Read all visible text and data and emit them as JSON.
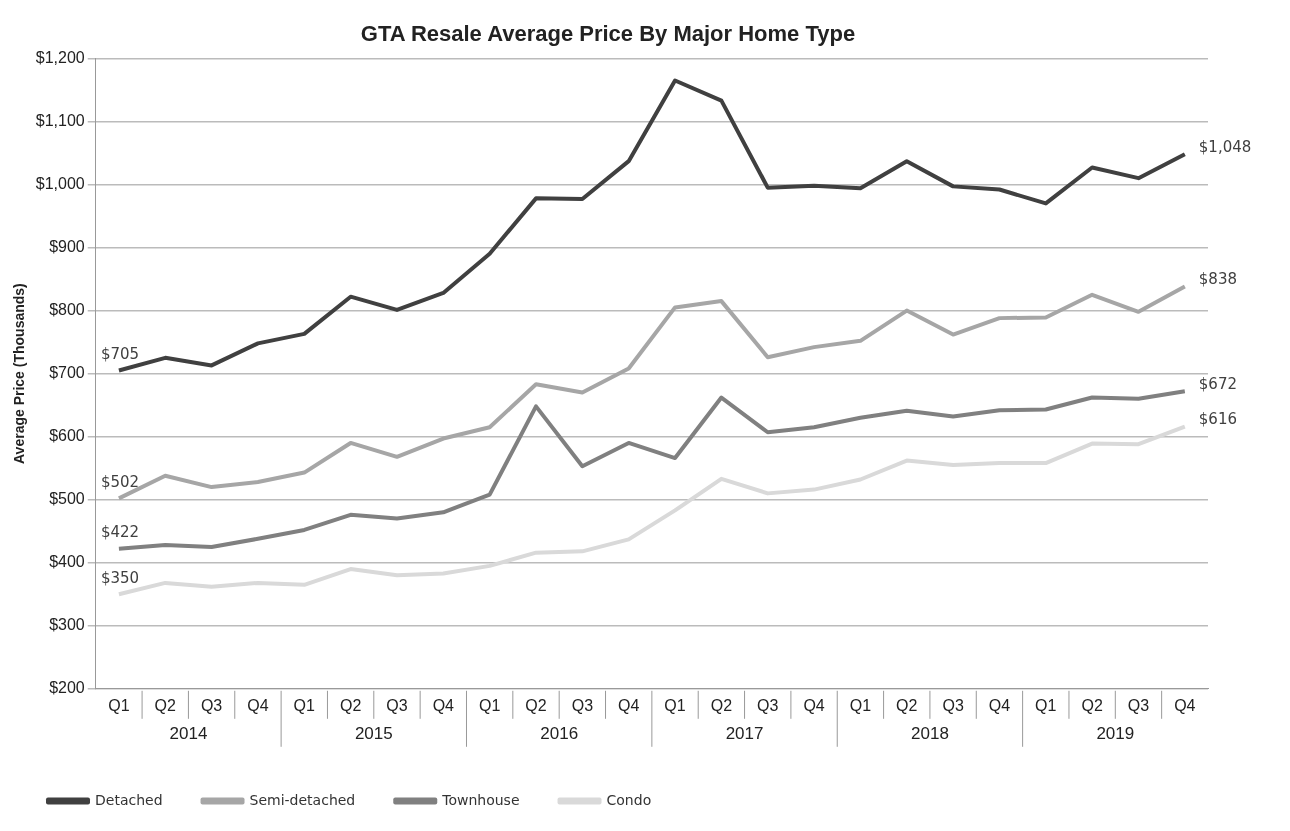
{
  "chart_data": {
    "type": "line",
    "title": "GTA Resale Average Price By Major Home Type",
    "ylabel": "Average Price (Thousands)",
    "categories": [
      "Q1",
      "Q2",
      "Q3",
      "Q4",
      "Q1",
      "Q2",
      "Q3",
      "Q4",
      "Q1",
      "Q2",
      "Q3",
      "Q4",
      "Q1",
      "Q2",
      "Q3",
      "Q4",
      "Q1",
      "Q2",
      "Q3",
      "Q4",
      "Q1",
      "Q2",
      "Q3",
      "Q4"
    ],
    "annotations": [
      "2014",
      "2015",
      "2016",
      "2017",
      "2018",
      "2019"
    ],
    "series": [
      {
        "name": "Detached",
        "color": "#404040",
        "values": [
          705,
          725,
          713,
          748,
          763,
          822,
          801,
          828,
          890,
          978,
          977,
          1037,
          1165,
          1133,
          995,
          998,
          994,
          1037,
          997,
          992,
          970,
          1027,
          1010,
          1048
        ],
        "value_labels": [
          "$705",
          null,
          null,
          null,
          null,
          null,
          null,
          null,
          null,
          null,
          null,
          null,
          null,
          null,
          null,
          null,
          null,
          null,
          null,
          null,
          null,
          null,
          null,
          "$1,048"
        ]
      },
      {
        "name": "Semi-detached",
        "color": "#a6a6a6",
        "values": [
          502,
          538,
          520,
          528,
          543,
          590,
          568,
          597,
          615,
          683,
          670,
          708,
          805,
          815,
          726,
          742,
          752,
          800,
          762,
          788,
          789,
          825,
          798,
          838
        ],
        "value_labels": [
          "$502",
          null,
          null,
          null,
          null,
          null,
          null,
          null,
          null,
          null,
          null,
          null,
          null,
          null,
          null,
          null,
          null,
          null,
          null,
          null,
          null,
          null,
          null,
          "$838"
        ]
      },
      {
        "name": "Townhouse",
        "color": "#808080",
        "values": [
          422,
          428,
          425,
          438,
          452,
          476,
          470,
          480,
          508,
          648,
          553,
          590,
          566,
          662,
          607,
          615,
          630,
          641,
          632,
          642,
          643,
          662,
          660,
          672
        ],
        "value_labels": [
          "$422",
          null,
          null,
          null,
          null,
          null,
          null,
          null,
          null,
          null,
          null,
          null,
          null,
          null,
          null,
          null,
          null,
          null,
          null,
          null,
          null,
          null,
          null,
          "$672"
        ]
      },
      {
        "name": "Condo",
        "color": "#d9d9d9",
        "values": [
          350,
          368,
          362,
          368,
          365,
          390,
          380,
          383,
          395,
          416,
          418,
          437,
          483,
          533,
          510,
          516,
          532,
          562,
          555,
          558,
          558,
          589,
          588,
          616
        ],
        "value_labels": [
          "$350",
          null,
          null,
          null,
          null,
          null,
          null,
          null,
          null,
          null,
          null,
          null,
          null,
          null,
          null,
          null,
          null,
          null,
          null,
          null,
          null,
          null,
          null,
          "$616"
        ]
      }
    ],
    "ylim": [
      200,
      1200
    ],
    "yticks": [
      {
        "value": 200,
        "label": "$200"
      },
      {
        "value": 300,
        "label": "$300"
      },
      {
        "value": 400,
        "label": "$400"
      },
      {
        "value": 500,
        "label": "$500"
      },
      {
        "value": 600,
        "label": "$600"
      },
      {
        "value": 700,
        "label": "$700"
      },
      {
        "value": 800,
        "label": "$800"
      },
      {
        "value": 900,
        "label": "$900"
      },
      {
        "value": 1000,
        "label": "$1,000"
      },
      {
        "value": 1100,
        "label": "$1,100"
      },
      {
        "value": 1200,
        "label": "$1,200"
      }
    ],
    "grid": "y",
    "legend": "bottom",
    "marker": "none",
    "line_style": "solid"
  }
}
